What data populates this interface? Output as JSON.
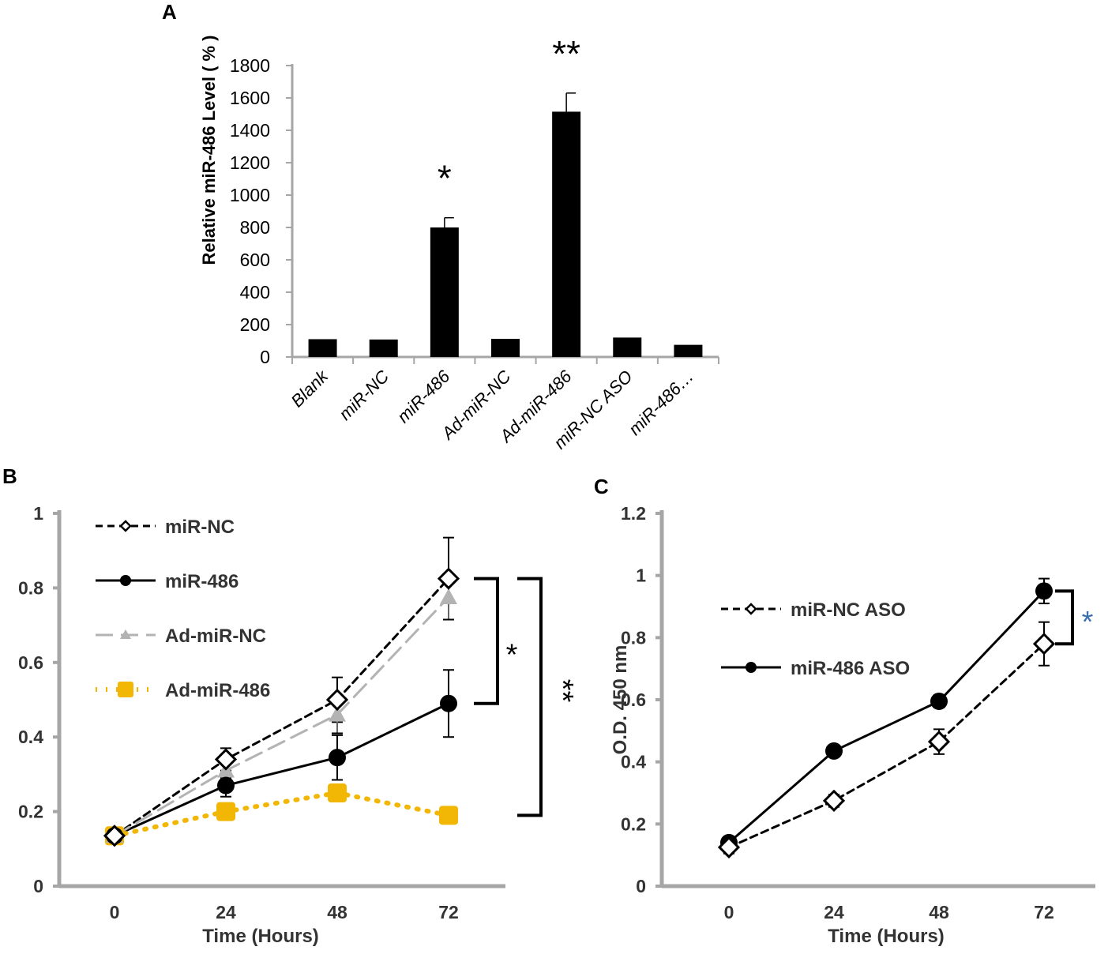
{
  "panels": {
    "a": "A",
    "b": "B",
    "c": "C"
  },
  "chart_data": [
    {
      "id": "A",
      "type": "bar",
      "title": "",
      "xlabel": "",
      "ylabel": "Relative miR-486 Level ( % )",
      "ylim": [
        0,
        1800
      ],
      "yticks": [
        "0",
        "200",
        "400",
        "600",
        "800",
        "1000",
        "1200",
        "1400",
        "1600",
        "1800"
      ],
      "categories": [
        "Blank",
        "miR-NC",
        "miR-486",
        "Ad-miR-NC",
        "Ad-miR-486",
        "miR-NC ASO",
        "miR-486…"
      ],
      "values": [
        110,
        108,
        800,
        112,
        1515,
        120,
        75
      ],
      "errors": [
        0,
        0,
        60,
        0,
        115,
        0,
        0
      ],
      "annotations": [
        {
          "category": "miR-486",
          "text": "*"
        },
        {
          "category": "Ad-miR-486",
          "text": "**"
        }
      ],
      "bar_color": "#000000"
    },
    {
      "id": "B",
      "type": "line",
      "xlabel": "Time (Hours)",
      "ylabel": "",
      "ylim": [
        0,
        1
      ],
      "yticks": [
        "0",
        "0.2",
        "0.4",
        "0.6",
        "0.8",
        "1"
      ],
      "x": [
        0,
        24,
        48,
        72
      ],
      "xtick_labels": [
        "0",
        "24",
        "48",
        "72"
      ],
      "legend_position": "top-left",
      "series": [
        {
          "name": "miR-NC",
          "values": [
            0.135,
            0.34,
            0.5,
            0.825
          ],
          "errors": [
            0.02,
            0.03,
            0.06,
            0.11
          ],
          "color": "#000000",
          "dash": "dashed",
          "marker": "open-diamond"
        },
        {
          "name": "miR-486",
          "values": [
            0.135,
            0.27,
            0.345,
            0.49
          ],
          "errors": [
            0.02,
            0.03,
            0.06,
            0.09
          ],
          "color": "#000000",
          "dash": "solid",
          "marker": "circle"
        },
        {
          "name": "Ad-miR-NC",
          "values": [
            0.135,
            0.31,
            0.46,
            0.775
          ],
          "errors": [
            0.02,
            0.02,
            0.05,
            0.06
          ],
          "color": "#b3b3b3",
          "dash": "long-dash",
          "marker": "triangle"
        },
        {
          "name": "Ad-miR-486",
          "values": [
            0.135,
            0.2,
            0.25,
            0.19
          ],
          "errors": [
            0,
            0,
            0,
            0
          ],
          "color": "#f2b705",
          "dash": "dotted",
          "marker": "square"
        }
      ],
      "brackets": [
        {
          "from": 0.825,
          "to": 0.49,
          "text": "*"
        },
        {
          "from": 0.825,
          "to": 0.19,
          "text": "**"
        }
      ]
    },
    {
      "id": "C",
      "type": "line",
      "xlabel": "Time (Hours)",
      "ylabel": "O.D. 450 nm",
      "ylim": [
        0,
        1.2
      ],
      "yticks": [
        "0",
        "0.2",
        "0.4",
        "0.6",
        "0.8",
        "1",
        "1.2"
      ],
      "x": [
        0,
        24,
        48,
        72
      ],
      "xtick_labels": [
        "0",
        "24",
        "48",
        "72"
      ],
      "legend_position": "top-left",
      "series": [
        {
          "name": "miR-NC ASO",
          "values": [
            0.125,
            0.275,
            0.465,
            0.78
          ],
          "errors": [
            0.02,
            0.02,
            0.04,
            0.07
          ],
          "color": "#000000",
          "dash": "dashed",
          "marker": "open-diamond"
        },
        {
          "name": "miR-486 ASO",
          "values": [
            0.14,
            0.435,
            0.595,
            0.95
          ],
          "errors": [
            0.02,
            0.015,
            0.02,
            0.04
          ],
          "color": "#000000",
          "dash": "solid",
          "marker": "circle"
        }
      ],
      "brackets": [
        {
          "from": 0.95,
          "to": 0.78,
          "text": "*",
          "color": "#3a6fb0"
        }
      ]
    }
  ]
}
